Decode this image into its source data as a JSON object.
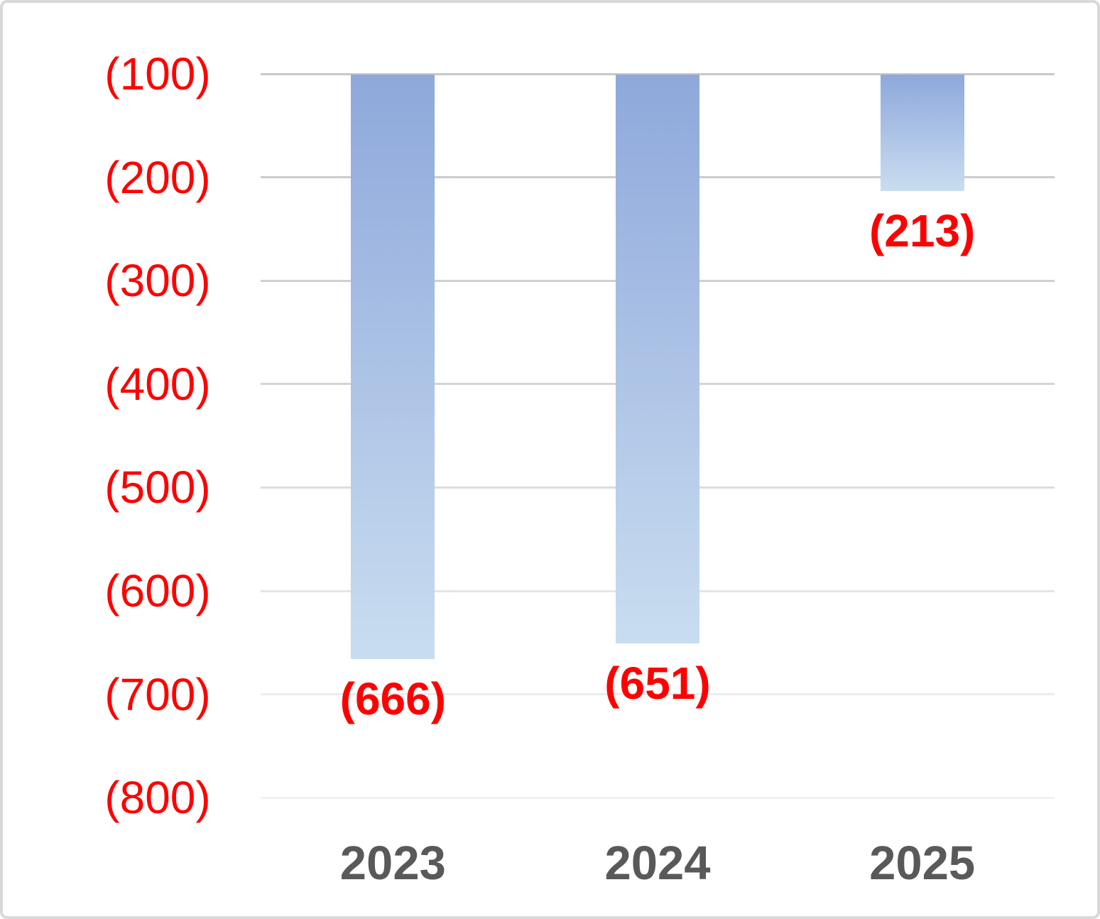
{
  "chart_data": {
    "type": "bar",
    "title": "",
    "xlabel": "",
    "ylabel": "",
    "categories": [
      "2023",
      "2024",
      "2025"
    ],
    "values": [
      -666,
      -651,
      -213
    ],
    "data_labels": [
      "(666)",
      "(651)",
      "(213)"
    ],
    "y_ticks": [
      -100,
      -200,
      -300,
      -400,
      -500,
      -600,
      -700,
      -800
    ],
    "y_tick_labels": [
      "(100)",
      "(200)",
      "(300)",
      "(400)",
      "(500)",
      "(600)",
      "(700)",
      "(800)"
    ],
    "ylim": [
      -800,
      -100
    ],
    "grid": true,
    "legend": false,
    "number_format": "parentheses-negative",
    "colors": {
      "bar_gradient_top": "#8EA8DB",
      "bar_gradient_bottom": "#C9DDF0",
      "y_tick_label": "#FF0000",
      "data_label": "#FF0000",
      "x_tick_label": "#595959",
      "background": "#FFFFFF",
      "border": "#D9D9D9",
      "gridlines": [
        "#C9C9C9",
        "#CCCCCC",
        "#D0D0D0",
        "#D4D4D4",
        "#DCDCDC",
        "#E5E5E5",
        "#ECECEC",
        "#F0F0F0"
      ]
    }
  }
}
